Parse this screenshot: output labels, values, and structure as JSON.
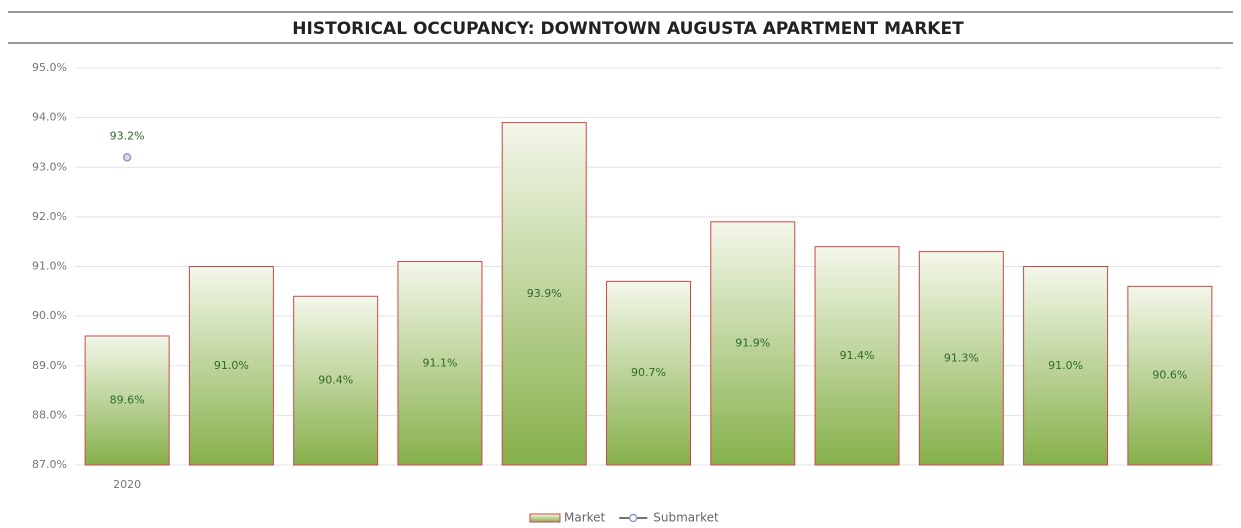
{
  "chart_data": {
    "type": "bar",
    "title": "HISTORICAL OCCUPANCY: DOWNTOWN AUGUSTA APARTMENT MARKET",
    "categories": [
      "2020",
      null,
      null,
      null,
      null,
      null,
      null,
      null,
      null,
      null,
      null
    ],
    "series": [
      {
        "name": "Market",
        "type": "bar",
        "color": "#8fb653",
        "values": [
          89.6,
          91.0,
          90.4,
          91.1,
          93.9,
          90.7,
          91.9,
          91.4,
          91.3,
          91.0,
          90.6
        ],
        "value_labels": [
          "89.6%",
          "91.0%",
          "90.4%",
          "91.1%",
          "93.9%",
          "90.7%",
          "91.9%",
          "91.4%",
          "91.3%",
          "91.0%",
          "90.6%"
        ]
      },
      {
        "name": "Submarket",
        "type": "line",
        "color": "#8e9bc7",
        "values": [
          93.2,
          null,
          null,
          null,
          null,
          null,
          null,
          null,
          null,
          null,
          null
        ],
        "value_labels": [
          "93.2%",
          null,
          null,
          null,
          null,
          null,
          null,
          null,
          null,
          null,
          null
        ]
      }
    ],
    "ylim": [
      87,
      95
    ],
    "yticks": [
      {
        "value": 87,
        "label": "87.0%"
      },
      {
        "value": 88,
        "label": "88.0%"
      },
      {
        "value": 89,
        "label": "89.0%"
      },
      {
        "value": 90,
        "label": "90.0%"
      },
      {
        "value": 91,
        "label": "91.0%"
      },
      {
        "value": 92,
        "label": "92.0%"
      },
      {
        "value": 93,
        "label": "93.0%"
      },
      {
        "value": 94,
        "label": "94.0%"
      },
      {
        "value": 95,
        "label": "95.0%"
      }
    ],
    "grid": true,
    "legend": "bottom"
  }
}
